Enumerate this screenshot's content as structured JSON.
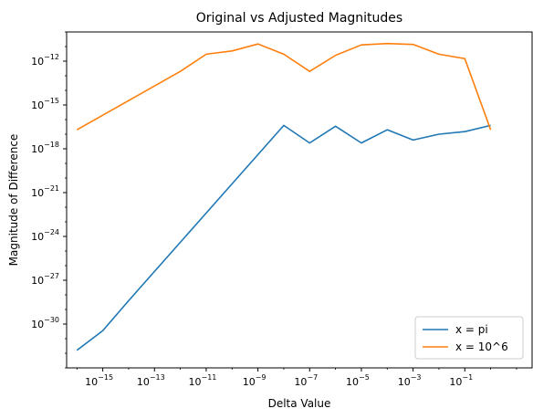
{
  "chart_data": {
    "type": "line",
    "title": "Original vs Adjusted Magnitudes",
    "xlabel": "Delta Value",
    "ylabel": "Magnitude of Difference",
    "xscale": "log",
    "yscale": "log",
    "xlim": [
      4e-17,
      40
    ],
    "ylim": [
      1e-33,
      1e-10
    ],
    "x_ticks": [
      {
        "exp": -15,
        "label": "10",
        "sup": "−15"
      },
      {
        "exp": -13,
        "label": "10",
        "sup": "−13"
      },
      {
        "exp": -11,
        "label": "10",
        "sup": "−11"
      },
      {
        "exp": -9,
        "label": "10",
        "sup": "−9"
      },
      {
        "exp": -7,
        "label": "10",
        "sup": "−7"
      },
      {
        "exp": -5,
        "label": "10",
        "sup": "−5"
      },
      {
        "exp": -3,
        "label": "10",
        "sup": "−3"
      },
      {
        "exp": -1,
        "label": "10",
        "sup": "−1"
      }
    ],
    "y_ticks": [
      {
        "exp": -30,
        "label": "10",
        "sup": "−30"
      },
      {
        "exp": -27,
        "label": "10",
        "sup": "−27"
      },
      {
        "exp": -24,
        "label": "10",
        "sup": "−24"
      },
      {
        "exp": -21,
        "label": "10",
        "sup": "−21"
      },
      {
        "exp": -18,
        "label": "10",
        "sup": "−18"
      },
      {
        "exp": -15,
        "label": "10",
        "sup": "−15"
      },
      {
        "exp": -12,
        "label": "10",
        "sup": "−12"
      }
    ],
    "grid": false,
    "legend_position": "lower-right",
    "x": [
      1e-16,
      1e-15,
      1e-14,
      1e-13,
      1e-12,
      1e-11,
      1e-10,
      1e-09,
      1e-08,
      1e-07,
      1e-06,
      1e-05,
      0.0001,
      0.001,
      0.01,
      0.1,
      1
    ],
    "series": [
      {
        "name": "x = pi",
        "color": "#1f77b4",
        "values": [
          1.6e-32,
          3.5e-31,
          4e-29,
          4e-27,
          4e-25,
          4e-23,
          4e-21,
          4e-19,
          4e-17,
          2.5e-18,
          3.5e-17,
          2.5e-18,
          2e-17,
          4e-18,
          1e-17,
          1.5e-17,
          4e-17
        ]
      },
      {
        "name": "x = 10^6",
        "color": "#ff7f0e",
        "values": [
          2e-17,
          2e-16,
          2e-15,
          2e-14,
          2e-13,
          3e-12,
          5e-12,
          1.5e-11,
          3e-12,
          2e-13,
          2.5e-12,
          1.3e-11,
          1.6e-11,
          1.4e-11,
          3e-12,
          1.5e-12,
          2e-17
        ]
      }
    ]
  }
}
